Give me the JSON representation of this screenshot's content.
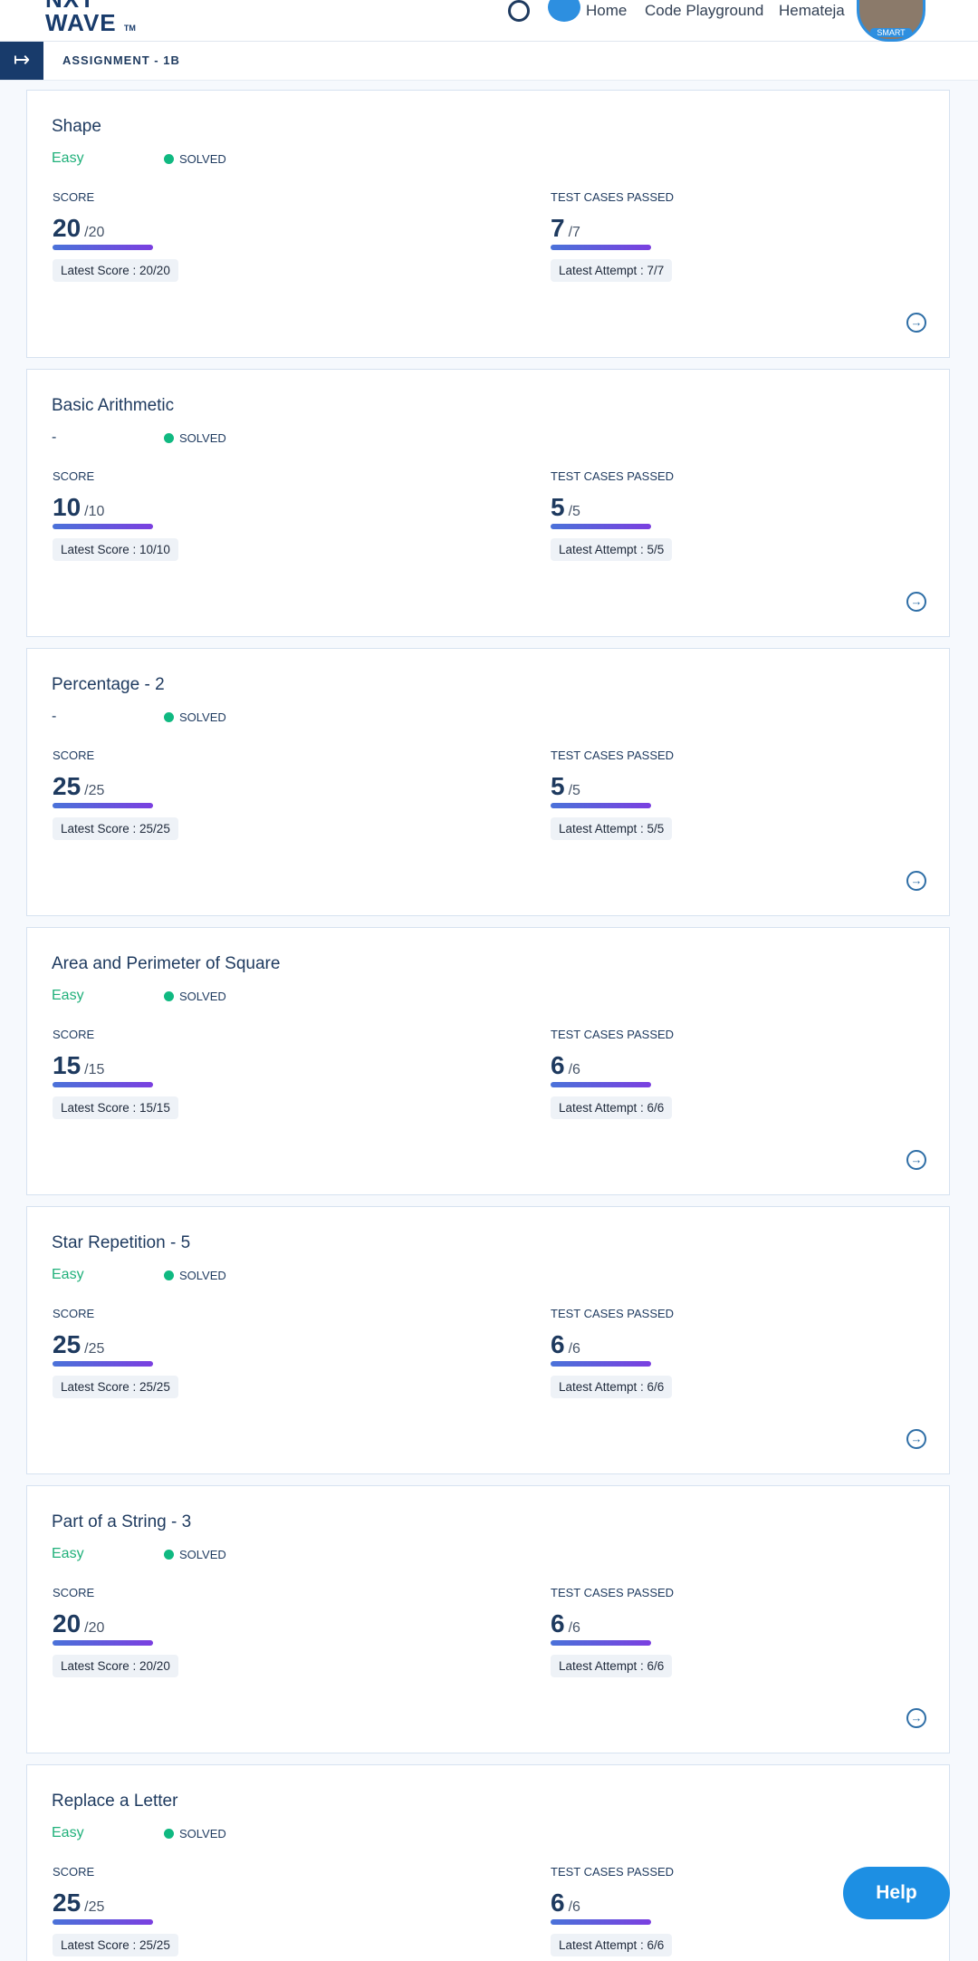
{
  "header": {
    "logo_top": "NXT",
    "logo_bottom": "WAVE",
    "logo_mark": "TM",
    "nav": [
      "Home",
      "Code Playground",
      "Hemateja"
    ],
    "badge": "SMART"
  },
  "assignment": "ASSIGNMENT - 1B",
  "cards": [
    {
      "title": "Shape",
      "difficulty": "Easy",
      "status": "SOLVED",
      "score_label": "SCORE",
      "score": 20,
      "score_max": 20,
      "score_max_label": "/20",
      "latest_score": "Latest Score : 20/20",
      "tests_label": "TEST CASES PASSED",
      "tests": 7,
      "tests_max": 7,
      "tests_max_label": "/7",
      "latest_attempt": "Latest Attempt : 7/7"
    },
    {
      "title": "Basic Arithmetic",
      "difficulty": "-",
      "status": "SOLVED",
      "score_label": "SCORE",
      "score": 10,
      "score_max": 10,
      "score_max_label": "/10",
      "latest_score": "Latest Score : 10/10",
      "tests_label": "TEST CASES PASSED",
      "tests": 5,
      "tests_max": 5,
      "tests_max_label": "/5",
      "latest_attempt": "Latest Attempt : 5/5"
    },
    {
      "title": "Percentage - 2",
      "difficulty": "-",
      "status": "SOLVED",
      "score_label": "SCORE",
      "score": 25,
      "score_max": 25,
      "score_max_label": "/25",
      "latest_score": "Latest Score : 25/25",
      "tests_label": "TEST CASES PASSED",
      "tests": 5,
      "tests_max": 5,
      "tests_max_label": "/5",
      "latest_attempt": "Latest Attempt : 5/5"
    },
    {
      "title": "Area and Perimeter of Square",
      "difficulty": "Easy",
      "status": "SOLVED",
      "score_label": "SCORE",
      "score": 15,
      "score_max": 15,
      "score_max_label": "/15",
      "latest_score": "Latest Score : 15/15",
      "tests_label": "TEST CASES PASSED",
      "tests": 6,
      "tests_max": 6,
      "tests_max_label": "/6",
      "latest_attempt": "Latest Attempt : 6/6"
    },
    {
      "title": "Star Repetition - 5",
      "difficulty": "Easy",
      "status": "SOLVED",
      "score_label": "SCORE",
      "score": 25,
      "score_max": 25,
      "score_max_label": "/25",
      "latest_score": "Latest Score : 25/25",
      "tests_label": "TEST CASES PASSED",
      "tests": 6,
      "tests_max": 6,
      "tests_max_label": "/6",
      "latest_attempt": "Latest Attempt : 6/6"
    },
    {
      "title": "Part of a String - 3",
      "difficulty": "Easy",
      "status": "SOLVED",
      "score_label": "SCORE",
      "score": 20,
      "score_max": 20,
      "score_max_label": "/20",
      "latest_score": "Latest Score : 20/20",
      "tests_label": "TEST CASES PASSED",
      "tests": 6,
      "tests_max": 6,
      "tests_max_label": "/6",
      "latest_attempt": "Latest Attempt : 6/6"
    },
    {
      "title": "Replace a Letter",
      "difficulty": "Easy",
      "status": "SOLVED",
      "score_label": "SCORE",
      "score": 25,
      "score_max": 25,
      "score_max_label": "/25",
      "latest_score": "Latest Score : 25/25",
      "tests_label": "TEST CASES PASSED",
      "tests": 6,
      "tests_max": 6,
      "tests_max_label": "/6",
      "latest_attempt": "Latest Attempt : 6/6"
    }
  ],
  "help": "Help"
}
